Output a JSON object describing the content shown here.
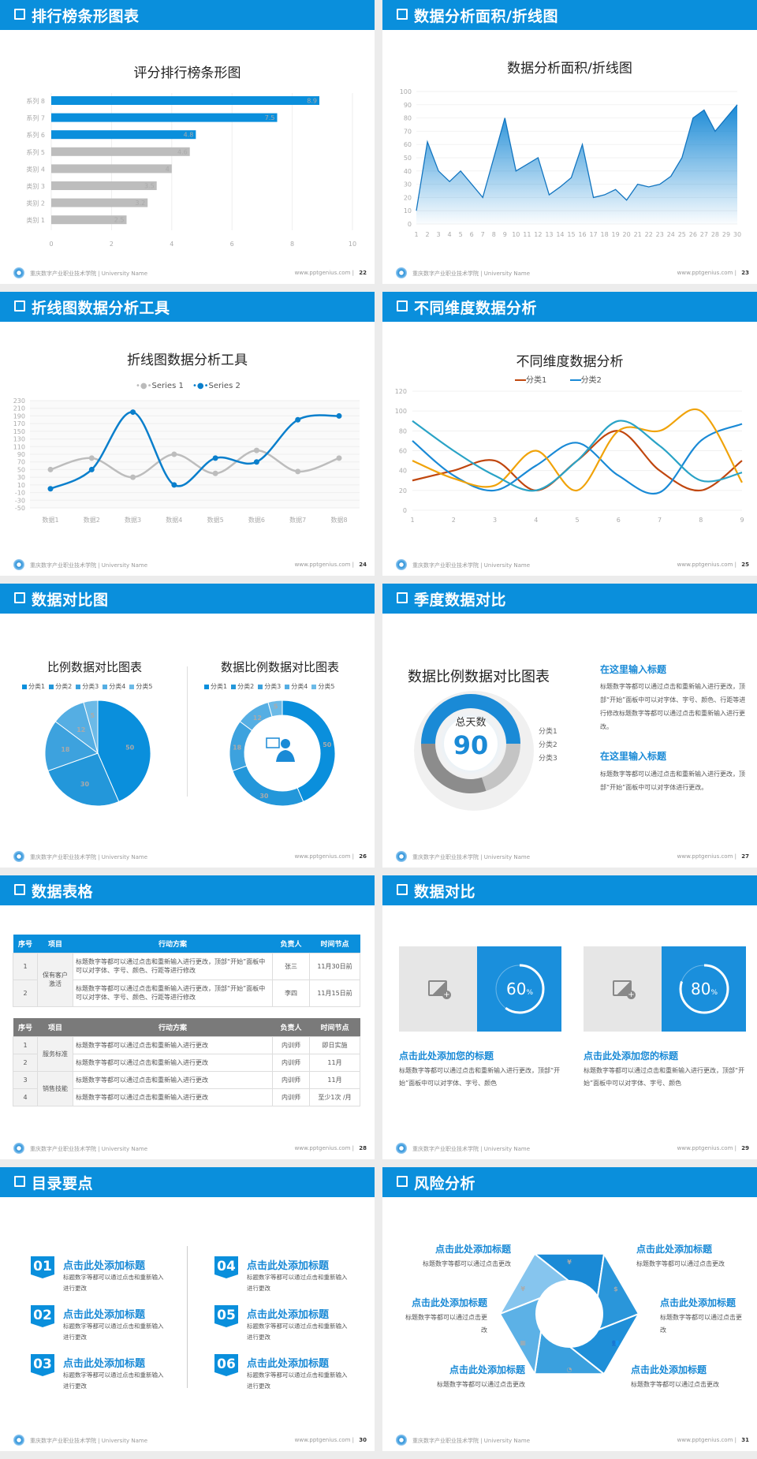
{
  "colors": {
    "brand": "#0a8fdc",
    "gray_bar": "#bdbdbd"
  },
  "footer": {
    "org": "重庆数字产业职业技术学院 | University Name",
    "website": "www.pptgenius.com  |"
  },
  "slide1": {
    "header": "排行榜条形图表",
    "page": "22",
    "chart_data": {
      "type": "bar",
      "orientation": "horizontal",
      "title": "评分排行榜条形图",
      "categories": [
        "类别 1",
        "类别 2",
        "类别 3",
        "类别 4",
        "系列 5",
        "系列 6",
        "系列 7",
        "系列 8"
      ],
      "values": [
        2.5,
        3.2,
        3.5,
        4,
        4.6,
        4.8,
        7.5,
        8.9
      ],
      "highlight_colors": [
        "#bdbdbd",
        "#bdbdbd",
        "#bdbdbd",
        "#bdbdbd",
        "#bdbdbd",
        "#0a8fdc",
        "#0a8fdc",
        "#0a8fdc"
      ],
      "xlim": [
        0,
        10
      ],
      "xticks": [
        "0",
        "2",
        "4",
        "6",
        "8",
        "10"
      ],
      "grid": true
    }
  },
  "slide2": {
    "header": "数据分析面积/折线图",
    "page": "23",
    "chart_data": {
      "type": "area",
      "title": "数据分析面积/折线图",
      "x": [
        1,
        2,
        3,
        4,
        5,
        6,
        7,
        8,
        9,
        10,
        11,
        12,
        13,
        14,
        15,
        16,
        17,
        18,
        19,
        20,
        21,
        22,
        23,
        24,
        25,
        26,
        27,
        28,
        29,
        30
      ],
      "values": [
        10,
        62,
        40,
        32,
        40,
        30,
        20,
        50,
        80,
        40,
        45,
        50,
        22,
        28,
        35,
        60,
        20,
        22,
        26,
        18,
        30,
        28,
        30,
        36,
        50,
        80,
        86,
        70,
        80,
        90
      ],
      "ylim": [
        0,
        100
      ],
      "yticks": [
        "0",
        "10",
        "20",
        "30",
        "40",
        "50",
        "60",
        "70",
        "80",
        "90",
        "100"
      ],
      "color": "#1a8ad6",
      "grid": true
    }
  },
  "slide3": {
    "header": "折线图数据分析工具",
    "page": "24",
    "chart_data": {
      "type": "line",
      "smooth": true,
      "title": "折线图数据分析工具",
      "legend": "top",
      "categories": [
        "数据1",
        "数据2",
        "数据3",
        "数据4",
        "数据5",
        "数据6",
        "数据7",
        "数据8"
      ],
      "series": [
        {
          "name": "Series 1",
          "values": [
            50,
            80,
            30,
            90,
            40,
            100,
            45,
            80
          ],
          "color": "#bdbdbd"
        },
        {
          "name": "Series 2",
          "values": [
            0,
            50,
            200,
            10,
            80,
            70,
            180,
            190
          ],
          "color": "#0a7fcc"
        }
      ],
      "ylim": [
        -50,
        230
      ],
      "yticks": [
        "-50",
        "-30",
        "-10",
        "10",
        "30",
        "50",
        "70",
        "90",
        "110",
        "130",
        "150",
        "170",
        "190",
        "210",
        "230"
      ]
    }
  },
  "slide4": {
    "header": "不同维度数据分析",
    "page": "25",
    "chart_data": {
      "type": "line",
      "smooth": true,
      "title": "不同维度数据分析",
      "legend": "top",
      "categories": [
        "1",
        "2",
        "3",
        "4",
        "5",
        "6",
        "7",
        "8",
        "9"
      ],
      "series": [
        {
          "name": "分类1",
          "values": [
            30,
            40,
            50,
            20,
            50,
            80,
            40,
            20,
            50
          ],
          "color": "#c0470f"
        },
        {
          "name": "分类2",
          "values": [
            70,
            35,
            20,
            45,
            68,
            35,
            18,
            70,
            87
          ],
          "color": "#1a8ad6"
        },
        {
          "values": [
            50,
            32,
            25,
            60,
            20,
            80,
            80,
            100,
            28
          ],
          "color": "#f0a30a"
        },
        {
          "values": [
            90,
            60,
            35,
            20,
            50,
            90,
            65,
            30,
            38
          ],
          "color": "#2aa3c6"
        }
      ],
      "ylim": [
        0,
        120
      ],
      "yticks": [
        "0",
        "20",
        "40",
        "60",
        "80",
        "100",
        "120"
      ],
      "grid": true
    }
  },
  "slide5": {
    "header": "数据对比图",
    "page": "26",
    "chart_data": [
      {
        "type": "pie",
        "title": "比例数据对比图表",
        "categories": [
          "分类1",
          "分类2",
          "分类3",
          "分类4",
          "分类5"
        ],
        "values": [
          50,
          30,
          18,
          12,
          5
        ],
        "colors": [
          "#0a8fdc",
          "#2397da",
          "#3da2de",
          "#55aee3",
          "#6cbae7"
        ]
      },
      {
        "type": "donut",
        "title": "数据比例数据对比图表",
        "categories": [
          "分类1",
          "分类2",
          "分类3",
          "分类4",
          "分类5"
        ],
        "values": [
          50,
          30,
          18,
          12,
          5
        ],
        "colors": [
          "#0a8fdc",
          "#2397da",
          "#3da2de",
          "#55aee3",
          "#6cbae7"
        ],
        "center_icon": "presenter-icon"
      }
    ]
  },
  "slide6": {
    "header": "季度数据对比",
    "page": "27",
    "chart_data": {
      "type": "donut",
      "title": "数据比例数据对比图表",
      "center_label": "总天数",
      "center_value": "90",
      "categories": [
        "分类1",
        "分类2",
        "分类3"
      ],
      "values": [
        50,
        20,
        30
      ],
      "colors": [
        "#1a8ad6",
        "#c4c4c4",
        "#8c8c8c"
      ],
      "legend": "right"
    },
    "blocks": [
      {
        "title": "在这里输入标题",
        "text": "标题数字等都可以通过点击和重新输入进行更改，顶部“开始”面板中可以对字体、字号、颜色、行距等进行修改标题数字等都可以通过点击和重新输入进行更改。"
      },
      {
        "title": "在这里输入标题",
        "text": "标题数字等都可以通过点击和重新输入进行更改，顶部“开始”面板中可以对字体进行更改。"
      }
    ]
  },
  "slide7": {
    "header": "数据表格",
    "page": "28",
    "columns": [
      "序号",
      "项目",
      "行动方案",
      "负责人",
      "时间节点"
    ],
    "table1": {
      "group": "保有客户激活",
      "rows": [
        {
          "no": "1",
          "plan": "标题数字等都可以通过点击和重新输入进行更改，顶部“开始”面板中可以对字体、字号、颜色、行距等进行修改",
          "owner": "张三",
          "time": "11月30日前"
        },
        {
          "no": "2",
          "plan": "标题数字等都可以通过点击和重新输入进行更改，顶部“开始”面板中可以对字体、字号、颜色、行距等进行修改",
          "owner": "李四",
          "time": "11月15日前"
        }
      ]
    },
    "table2": {
      "groups": [
        "服务标准",
        "销售技能"
      ],
      "rows": [
        {
          "no": "1",
          "plan": "标题数字等都可以通过点击和重新输入进行更改",
          "owner": "内训师",
          "time": "即日实施"
        },
        {
          "no": "2",
          "plan": "标题数字等都可以通过点击和重新输入进行更改",
          "owner": "内训师",
          "time": "11月"
        },
        {
          "no": "3",
          "plan": "标题数字等都可以通过点击和重新输入进行更改",
          "owner": "内训师",
          "time": "11月"
        },
        {
          "no": "4",
          "plan": "标题数字等都可以通过点击和重新输入进行更改",
          "owner": "内训师",
          "time": "至少1次 /月"
        }
      ]
    }
  },
  "slide8": {
    "header": "数据对比",
    "page": "29",
    "cards": [
      {
        "percent": 60,
        "value": "60",
        "unit": "%",
        "title": "点击此处添加您的标题",
        "text": "标题数字等都可以通过点击和重新输入进行更改，顶部“开始”面板中可以对字体、字号、颜色"
      },
      {
        "percent": 80,
        "value": "80",
        "unit": "%",
        "title": "点击此处添加您的标题",
        "text": "标题数字等都可以通过点击和重新输入进行更改，顶部“开始”面板中可以对字体、字号、颜色"
      }
    ]
  },
  "slide9": {
    "header": "目录要点",
    "page": "30",
    "items": [
      {
        "num": "01",
        "title": "点击此处添加标题",
        "text": "标题数字等都可以通过点击和重新输入进行更改"
      },
      {
        "num": "02",
        "title": "点击此处添加标题",
        "text": "标题数字等都可以通过点击和重新输入进行更改"
      },
      {
        "num": "03",
        "title": "点击此处添加标题",
        "text": "标题数字等都可以通过点击和重新输入进行更改"
      },
      {
        "num": "04",
        "title": "点击此处添加标题",
        "text": "标题数字等都可以通过点击和重新输入进行更改"
      },
      {
        "num": "05",
        "title": "点击此处添加标题",
        "text": "标题数字等都可以通过点击和重新输入进行更改"
      },
      {
        "num": "06",
        "title": "点击此处添加标题",
        "text": "标题数字等都可以通过点击和重新输入进行更改"
      }
    ]
  },
  "slide10": {
    "header": "风险分析",
    "page": "31",
    "items": [
      {
        "title": "点击此处添加标题",
        "text": "标题数字等都可以通过点击更改",
        "icon": "money-bag-icon"
      },
      {
        "title": "点击此处添加标题",
        "text": "标题数字等都可以通过点击更改",
        "icon": "coins-icon"
      },
      {
        "title": "点击此处添加标题",
        "text": "标题数字等都可以通过点击更改",
        "icon": "users-icon"
      },
      {
        "title": "点击此处添加标题",
        "text": "标题数字等都可以通过点击更改",
        "icon": "pie-chart-icon"
      },
      {
        "title": "点击此处添加标题",
        "text": "标题数字等都可以通过点击更改",
        "icon": "building-icon"
      },
      {
        "title": "点击此处添加标题",
        "text": "标题数字等都可以通过点击更改",
        "icon": "yen-hand-icon"
      }
    ]
  }
}
